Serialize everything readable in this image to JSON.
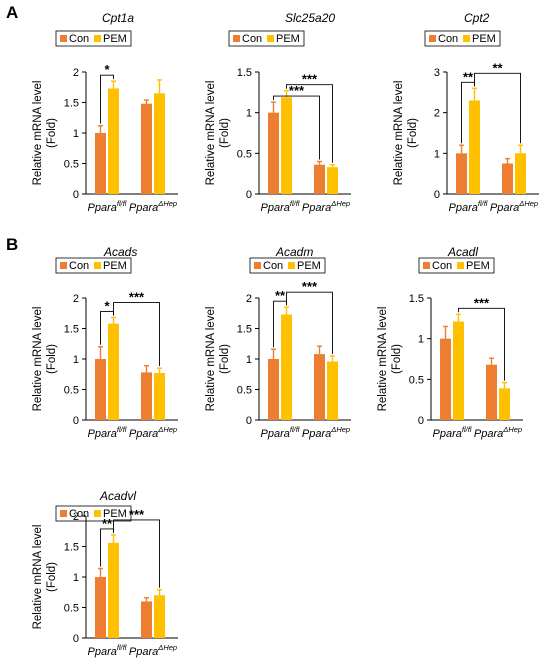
{
  "panels": [
    "A",
    "B"
  ],
  "colors": {
    "con": "#ED7D31",
    "pem": "#FFC000",
    "axis": "#000000"
  },
  "legend": {
    "con": "Con",
    "pem": "PEM"
  },
  "ylabel": [
    "Relative mRNA level",
    "(Fold)"
  ],
  "categories": [
    {
      "base": "Ppara",
      "sup": "fl/fl"
    },
    {
      "base": "Ppara",
      "sup": "ΔHep"
    }
  ],
  "chart_data": [
    {
      "type": "bar",
      "title": "Cpt1a",
      "ylim": [
        0,
        2
      ],
      "yticks": [
        "0",
        "0.5",
        "1",
        "1.5",
        "2"
      ],
      "categories": [
        "Ppara fl/fl",
        "Ppara ΔHep"
      ],
      "series": [
        {
          "name": "Con",
          "values": [
            1.0,
            1.48
          ],
          "errors": [
            0.12,
            0.06
          ]
        },
        {
          "name": "PEM",
          "values": [
            1.73,
            1.65
          ],
          "errors": [
            0.12,
            0.22
          ]
        }
      ],
      "significance": [
        {
          "from": [
            0,
            0
          ],
          "to": [
            0,
            1
          ],
          "label": "*"
        }
      ]
    },
    {
      "type": "bar",
      "title": "Slc25a20",
      "ylim": [
        0,
        1.5
      ],
      "yticks": [
        "0",
        "0.5",
        "1",
        "1.5"
      ],
      "categories": [
        "Ppara fl/fl",
        "Ppara ΔHep"
      ],
      "series": [
        {
          "name": "Con",
          "values": [
            1.0,
            0.36
          ],
          "errors": [
            0.13,
            0.04
          ]
        },
        {
          "name": "PEM",
          "values": [
            1.19,
            0.33
          ],
          "errors": [
            0.08,
            0.03
          ]
        }
      ],
      "significance": [
        {
          "from": [
            0,
            0
          ],
          "to": [
            1,
            0
          ],
          "label": "***"
        },
        {
          "from": [
            0,
            1
          ],
          "to": [
            1,
            1
          ],
          "label": "***"
        }
      ]
    },
    {
      "type": "bar",
      "title": "Cpt2",
      "ylim": [
        0,
        3
      ],
      "yticks": [
        "0",
        "1",
        "2",
        "3"
      ],
      "categories": [
        "Ppara fl/fl",
        "Ppara ΔHep"
      ],
      "series": [
        {
          "name": "Con",
          "values": [
            1.0,
            0.75
          ],
          "errors": [
            0.2,
            0.12
          ]
        },
        {
          "name": "PEM",
          "values": [
            2.3,
            1.0
          ],
          "errors": [
            0.3,
            0.2
          ]
        }
      ],
      "significance": [
        {
          "from": [
            0,
            0
          ],
          "to": [
            0,
            1
          ],
          "label": "**"
        },
        {
          "from": [
            0,
            1
          ],
          "to": [
            1,
            1
          ],
          "label": "**"
        }
      ]
    },
    {
      "type": "bar",
      "title": "Acads",
      "ylim": [
        0,
        2
      ],
      "yticks": [
        "0",
        "0.5",
        "1",
        "1.5",
        "2"
      ],
      "categories": [
        "Ppara fl/fl",
        "Ppara ΔHep"
      ],
      "series": [
        {
          "name": "Con",
          "values": [
            1.0,
            0.78
          ],
          "errors": [
            0.2,
            0.11
          ]
        },
        {
          "name": "PEM",
          "values": [
            1.58,
            0.77
          ],
          "errors": [
            0.1,
            0.08
          ]
        }
      ],
      "significance": [
        {
          "from": [
            0,
            0
          ],
          "to": [
            0,
            1
          ],
          "label": "*"
        },
        {
          "from": [
            0,
            1
          ],
          "to": [
            1,
            1
          ],
          "label": "***"
        }
      ]
    },
    {
      "type": "bar",
      "title": "Acadm",
      "ylim": [
        0,
        2
      ],
      "yticks": [
        "0",
        "0.5",
        "1",
        "1.5",
        "2"
      ],
      "categories": [
        "Ppara fl/fl",
        "Ppara ΔHep"
      ],
      "series": [
        {
          "name": "Con",
          "values": [
            1.0,
            1.08
          ],
          "errors": [
            0.16,
            0.13
          ]
        },
        {
          "name": "PEM",
          "values": [
            1.73,
            0.96
          ],
          "errors": [
            0.12,
            0.09
          ]
        }
      ],
      "significance": [
        {
          "from": [
            0,
            0
          ],
          "to": [
            0,
            1
          ],
          "label": "**"
        },
        {
          "from": [
            0,
            1
          ],
          "to": [
            1,
            1
          ],
          "label": "***"
        }
      ]
    },
    {
      "type": "bar",
      "title": "Acadl",
      "ylim": [
        0,
        1.5
      ],
      "yticks": [
        "0",
        "0.5",
        "1",
        "1.5"
      ],
      "categories": [
        "Ppara fl/fl",
        "Ppara ΔHep"
      ],
      "series": [
        {
          "name": "Con",
          "values": [
            1.0,
            0.68
          ],
          "errors": [
            0.15,
            0.08
          ]
        },
        {
          "name": "PEM",
          "values": [
            1.21,
            0.39
          ],
          "errors": [
            0.09,
            0.07
          ]
        }
      ],
      "significance": [
        {
          "from": [
            0,
            1
          ],
          "to": [
            1,
            1
          ],
          "label": "***"
        }
      ]
    },
    {
      "type": "bar",
      "title": "Acadvl",
      "ylim": [
        0,
        2
      ],
      "yticks": [
        "0",
        "0.5",
        "1",
        "1.5",
        "2"
      ],
      "categories": [
        "Ppara fl/fl",
        "Ppara ΔHep"
      ],
      "series": [
        {
          "name": "Con",
          "values": [
            1.0,
            0.6
          ],
          "errors": [
            0.14,
            0.06
          ]
        },
        {
          "name": "PEM",
          "values": [
            1.56,
            0.7
          ],
          "errors": [
            0.13,
            0.09
          ]
        }
      ],
      "significance": [
        {
          "from": [
            0,
            0
          ],
          "to": [
            0,
            1
          ],
          "label": "**"
        },
        {
          "from": [
            0,
            1
          ],
          "to": [
            1,
            1
          ],
          "label": "***"
        }
      ]
    }
  ]
}
